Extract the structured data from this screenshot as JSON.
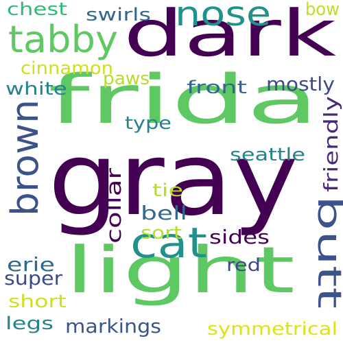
{
  "word_cloud": {
    "background": "#ffffff",
    "words": [
      {
        "text": "gray",
        "weight": 1.0,
        "color": "#440154"
      },
      {
        "text": "frida",
        "weight": 0.7,
        "color": "#5ec962"
      },
      {
        "text": "dark",
        "weight": 0.62,
        "color": "#440154"
      },
      {
        "text": "light",
        "weight": 0.6,
        "color": "#5ec962"
      },
      {
        "text": "butt",
        "weight": 0.35,
        "color": "#3b528b"
      },
      {
        "text": "nose",
        "weight": 0.33,
        "color": "#21918c"
      },
      {
        "text": "brown",
        "weight": 0.33,
        "color": "#3b528b"
      },
      {
        "text": "tabby",
        "weight": 0.3,
        "color": "#5ec962"
      },
      {
        "text": "cat",
        "weight": 0.3,
        "color": "#21918c"
      },
      {
        "text": "friendly",
        "weight": 0.13,
        "color": "#482878"
      },
      {
        "text": "mostly",
        "weight": 0.15,
        "color": "#3e4989"
      },
      {
        "text": "front",
        "weight": 0.14,
        "color": "#31688e"
      },
      {
        "text": "cinnamon",
        "weight": 0.13,
        "color": "#cde11d"
      },
      {
        "text": "white",
        "weight": 0.13,
        "color": "#26828e"
      },
      {
        "text": "paws",
        "weight": 0.13,
        "color": "#b5de2b"
      },
      {
        "text": "swirls",
        "weight": 0.13,
        "color": "#31688e"
      },
      {
        "text": "chest",
        "weight": 0.13,
        "color": "#35b779"
      },
      {
        "text": "bow",
        "weight": 0.12,
        "color": "#bddf26"
      },
      {
        "text": "type",
        "weight": 0.12,
        "color": "#26828e"
      },
      {
        "text": "seattle",
        "weight": 0.12,
        "color": "#26828e"
      },
      {
        "text": "collar",
        "weight": 0.13,
        "color": "#440154"
      },
      {
        "text": "tie",
        "weight": 0.13,
        "color": "#b5de2b"
      },
      {
        "text": "bell",
        "weight": 0.13,
        "color": "#31688e"
      },
      {
        "text": "sort",
        "weight": 0.13,
        "color": "#b5de2b"
      },
      {
        "text": "sides",
        "weight": 0.13,
        "color": "#440154"
      },
      {
        "text": "red",
        "weight": 0.13,
        "color": "#3e4989"
      },
      {
        "text": "erie",
        "weight": 0.13,
        "color": "#31688e"
      },
      {
        "text": "super",
        "weight": 0.13,
        "color": "#3e4989"
      },
      {
        "text": "short",
        "weight": 0.13,
        "color": "#cde11d"
      },
      {
        "text": "legs",
        "weight": 0.13,
        "color": "#26828e"
      },
      {
        "text": "markings",
        "weight": 0.13,
        "color": "#3b528b"
      },
      {
        "text": "symmetrical",
        "weight": 0.13,
        "color": "#dde318"
      }
    ]
  }
}
